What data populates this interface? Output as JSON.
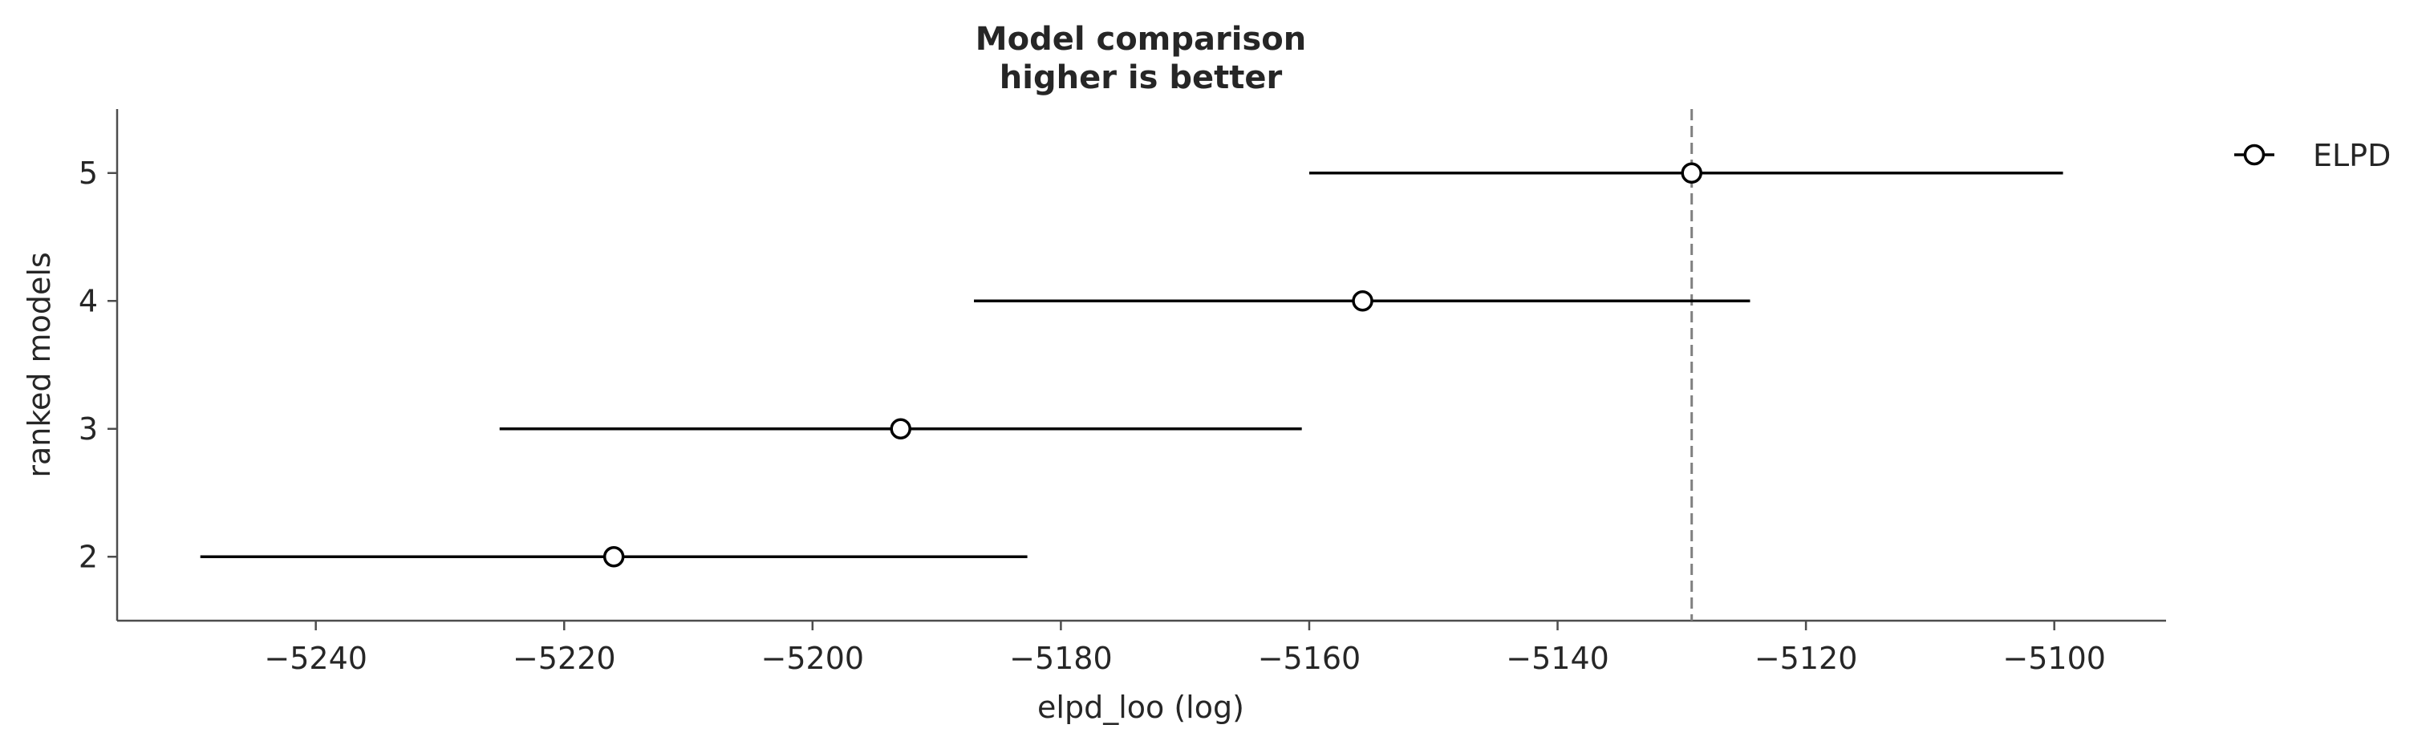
{
  "chart_data": {
    "type": "scatter",
    "title_lines": [
      "Model comparison",
      "higher is better"
    ],
    "xlabel": "elpd_loo (log)",
    "ylabel": "ranked models",
    "xlim": [
      -5256,
      -5091
    ],
    "ylim": [
      1.5,
      5.5
    ],
    "x_ticks": [
      -5240,
      -5220,
      -5200,
      -5180,
      -5160,
      -5140,
      -5120,
      -5100
    ],
    "x_tick_labels": [
      "−5240",
      "−5220",
      "−5200",
      "−5180",
      "−5160",
      "−5140",
      "−5120",
      "−5100"
    ],
    "y_ticks": [
      2,
      3,
      4,
      5
    ],
    "y_tick_labels": [
      "2",
      "3",
      "4",
      "5"
    ],
    "series": [
      {
        "name": "ELPD",
        "points": [
          {
            "model": 5,
            "elpd": -5129.2,
            "lower": -5160.0,
            "upper": -5099.3
          },
          {
            "model": 4,
            "elpd": -5155.7,
            "lower": -5187.0,
            "upper": -5124.5
          },
          {
            "model": 3,
            "elpd": -5192.9,
            "lower": -5225.2,
            "upper": -5160.6
          },
          {
            "model": 2,
            "elpd": -5216.0,
            "lower": -5249.3,
            "upper": -5182.7
          }
        ]
      }
    ],
    "reference_line_x": -5129.2,
    "legend_position": "top-right",
    "grid": false,
    "colors": {
      "line": "#000000",
      "marker_face": "#ffffff",
      "reference": "#808080",
      "axis": "#4d4d4d",
      "text": "#262626"
    }
  }
}
